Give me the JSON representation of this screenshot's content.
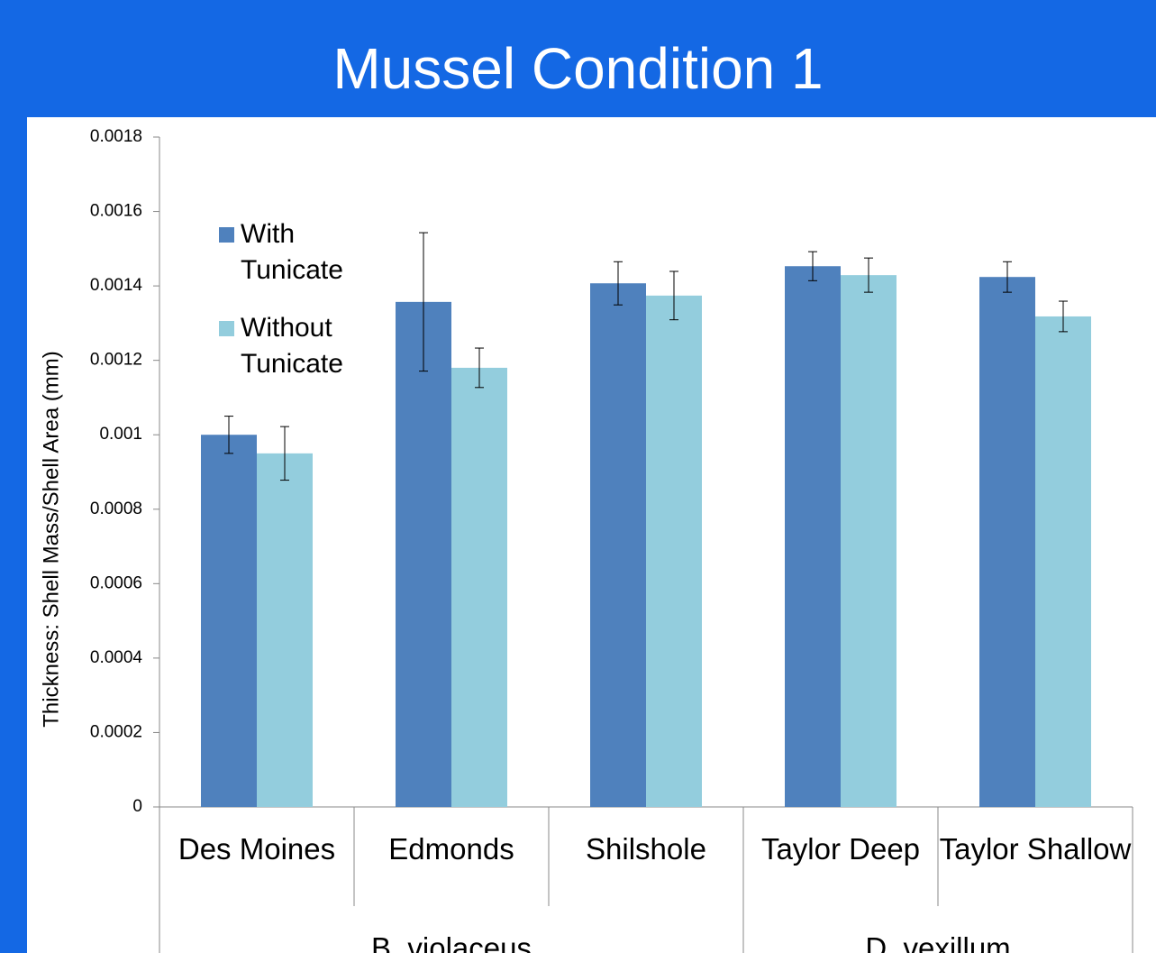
{
  "chart_data": {
    "type": "bar",
    "title": "Mussel Condition 1",
    "y_label": "Thickness: Shell Mass/Shell Area (mm)",
    "categories": [
      "Des Moines",
      "Edmonds",
      "Shilshole",
      "Taylor Deep",
      "Taylor Shallow"
    ],
    "groups": [
      {
        "name": "B. violaceus",
        "size": 3
      },
      {
        "name": "D. vexillum",
        "size": 2
      }
    ],
    "series": [
      {
        "name": "With Tunicate",
        "color": "#4f81bd",
        "values": [
          0.001,
          0.001357,
          0.001407,
          0.001453,
          0.001424
        ],
        "errors": [
          5e-05,
          0.000186,
          5.8e-05,
          3.9e-05,
          4.1e-05
        ]
      },
      {
        "name": "Without Tunicate",
        "color": "#93cddd",
        "values": [
          0.00095,
          0.00118,
          0.001374,
          0.001429,
          0.001318
        ],
        "errors": [
          7.2e-05,
          5.3e-05,
          6.5e-05,
          4.6e-05,
          4.1e-05
        ]
      }
    ],
    "ylim": [
      0,
      0.0018
    ],
    "yticks": [
      0,
      0.0002,
      0.0004,
      0.0006,
      0.0008,
      0.001,
      0.0012,
      0.0014,
      0.0016,
      0.0018
    ],
    "legend": "upper left",
    "grid": false
  }
}
